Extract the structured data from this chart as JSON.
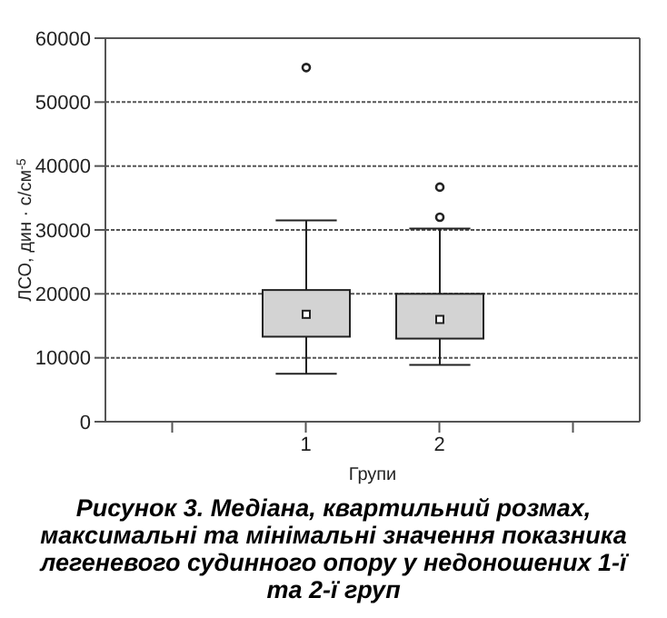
{
  "chart_data": {
    "type": "box",
    "title": "Рисунок 3. Медіана, квартильний розмах, максимальні та мінімальні значення показника легеневого судинного опору у недоношених 1-ї та 2-ї груп",
    "xlabel": "Групи",
    "ylabel": "ЛСО, дин · с/см$^{-5}$",
    "categories": [
      null,
      "1",
      "2",
      null
    ],
    "boxes": [
      null,
      {
        "low": 7500,
        "q1": 13300,
        "median": 16800,
        "q3": 20600,
        "high": 31500,
        "outliers": [
          55400
        ]
      },
      {
        "low": 8900,
        "q1": 13000,
        "median": 16000,
        "q3": 20000,
        "high": 30200,
        "outliers": [
          32000,
          36700
        ]
      },
      null
    ],
    "color": "#d3d3d3",
    "ylim": [
      0,
      60000
    ],
    "yticks": [
      0,
      10000,
      20000,
      30000,
      40000,
      50000,
      60000
    ],
    "grid": "y"
  }
}
